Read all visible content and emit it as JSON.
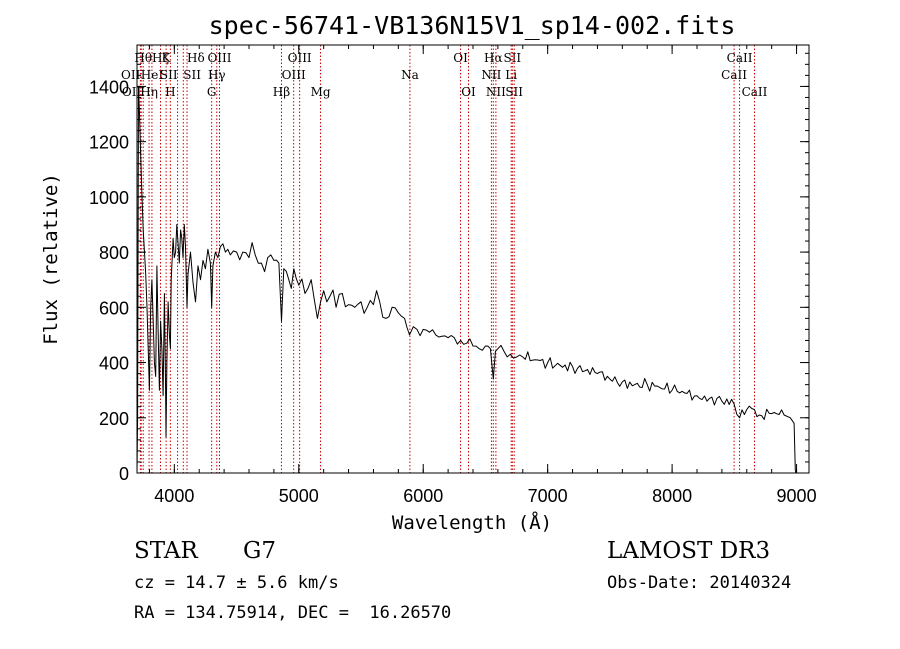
{
  "chart_data": {
    "type": "line",
    "title": "spec-56741-VB136N15V1_sp14-002.fits",
    "xlabel": "Wavelength (Å)",
    "ylabel": "Flux (relative)",
    "xlim": [
      3700,
      9100
    ],
    "ylim": [
      0,
      1550
    ],
    "xticks": [
      4000,
      5000,
      6000,
      7000,
      8000,
      9000
    ],
    "yticks": [
      0,
      200,
      400,
      600,
      800,
      1000,
      1200,
      1400
    ],
    "x_minor_step": 200,
    "y_minor_step": 40,
    "spectrum": {
      "x": [
        3700,
        3705,
        3712,
        3720,
        3730,
        3740,
        3750,
        3760,
        3770,
        3780,
        3790,
        3800,
        3810,
        3820,
        3830,
        3840,
        3850,
        3860,
        3870,
        3880,
        3890,
        3900,
        3910,
        3920,
        3930,
        3933,
        3940,
        3950,
        3960,
        3968,
        3975,
        3990,
        4000,
        4010,
        4020,
        4030,
        4040,
        4050,
        4060,
        4070,
        4080,
        4090,
        4102,
        4110,
        4130,
        4150,
        4170,
        4190,
        4210,
        4230,
        4250,
        4270,
        4290,
        4300,
        4310,
        4330,
        4350,
        4370,
        4390,
        4410,
        4430,
        4450,
        4500,
        4550,
        4600,
        4650,
        4700,
        4750,
        4800,
        4840,
        4861,
        4880,
        4920,
        4960,
        5000,
        5050,
        5100,
        5150,
        5175,
        5200,
        5250,
        5300,
        5350,
        5400,
        5450,
        5500,
        5550,
        5600,
        5650,
        5700,
        5750,
        5800,
        5850,
        5890,
        5920,
        5950,
        6000,
        6050,
        6100,
        6150,
        6200,
        6250,
        6300,
        6350,
        6400,
        6450,
        6500,
        6540,
        6563,
        6580,
        6600,
        6650,
        6700,
        6750,
        6800,
        6900,
        7000,
        7100,
        7200,
        7300,
        7400,
        7500,
        7600,
        7700,
        7800,
        7900,
        8000,
        8100,
        8200,
        8300,
        8400,
        8498,
        8542,
        8600,
        8662,
        8700,
        8800,
        8900,
        8950,
        8980,
        8990,
        8995
      ],
      "y": [
        0,
        200,
        1400,
        1300,
        1150,
        1000,
        880,
        800,
        720,
        600,
        450,
        300,
        600,
        700,
        550,
        400,
        350,
        750,
        500,
        300,
        550,
        450,
        280,
        650,
        300,
        130,
        400,
        620,
        500,
        450,
        700,
        850,
        780,
        800,
        900,
        830,
        760,
        880,
        850,
        780,
        900,
        820,
        600,
        720,
        800,
        690,
        620,
        750,
        700,
        770,
        740,
        810,
        760,
        600,
        750,
        800,
        780,
        820,
        830,
        800,
        810,
        790,
        800,
        800,
        780,
        790,
        760,
        780,
        770,
        760,
        550,
        740,
        700,
        740,
        680,
        650,
        700,
        560,
        620,
        660,
        640,
        600,
        650,
        610,
        600,
        620,
        600,
        610,
        620,
        560,
        600,
        580,
        560,
        500,
        530,
        520,
        520,
        510,
        500,
        495,
        490,
        490,
        480,
        470,
        460,
        450,
        460,
        450,
        340,
        440,
        450,
        440,
        430,
        420,
        420,
        410,
        400,
        390,
        385,
        370,
        360,
        340,
        330,
        320,
        320,
        310,
        300,
        290,
        280,
        270,
        260,
        250,
        200,
        230,
        230,
        210,
        215,
        210,
        200,
        180,
        10,
        0
      ]
    },
    "line_markers": [
      {
        "wavelength": 3727,
        "label": "OII",
        "row": 2,
        "align": "end"
      },
      {
        "wavelength": 3734,
        "label": "OII",
        "row": 3,
        "align": "end"
      },
      {
        "wavelength": 3750,
        "label": "Hθ",
        "row": 1,
        "align": "middle"
      },
      {
        "wavelength": 3797,
        "label": "Hη",
        "row": 3,
        "align": "middle"
      },
      {
        "wavelength": 3820,
        "label": "HeI",
        "row": 2,
        "align": "middle"
      },
      {
        "wavelength": 3889,
        "label": "Hζ",
        "row": 1,
        "align": "middle"
      },
      {
        "wavelength": 3934,
        "label": "K",
        "row": 1,
        "align": "middle"
      },
      {
        "wavelength": 3968,
        "label": "H",
        "row": 3,
        "align": "middle"
      },
      {
        "wavelength": 4026,
        "label": "SII",
        "row": 2,
        "align": "end"
      },
      {
        "wavelength": 4072,
        "label": "SII",
        "row": 2,
        "align": "start"
      },
      {
        "wavelength": 4102,
        "label": "Hδ",
        "row": 1,
        "align": "start"
      },
      {
        "wavelength": 4300,
        "label": "G",
        "row": 3,
        "align": "middle"
      },
      {
        "wavelength": 4341,
        "label": "Hγ",
        "row": 2,
        "align": "middle"
      },
      {
        "wavelength": 4363,
        "label": "OIII",
        "row": 1,
        "align": "middle"
      },
      {
        "wavelength": 4861,
        "label": "Hβ",
        "row": 3,
        "align": "middle"
      },
      {
        "wavelength": 4959,
        "label": "OIII",
        "row": 2,
        "align": "middle"
      },
      {
        "wavelength": 5007,
        "label": "OIII",
        "row": 1,
        "align": "middle"
      },
      {
        "wavelength": 5175,
        "label": "Mg",
        "row": 3,
        "align": "middle"
      },
      {
        "wavelength": 5893,
        "label": "Na",
        "row": 2,
        "align": "middle"
      },
      {
        "wavelength": 6300,
        "label": "OI",
        "row": 1,
        "align": "middle"
      },
      {
        "wavelength": 6364,
        "label": "OI",
        "row": 3,
        "align": "middle"
      },
      {
        "wavelength": 6548,
        "label": "NII",
        "row": 2,
        "align": "middle"
      },
      {
        "wavelength": 6563,
        "label": "Hα",
        "row": 1,
        "align": "middle"
      },
      {
        "wavelength": 6584,
        "label": "NII",
        "row": 3,
        "align": "middle"
      },
      {
        "wavelength": 6707,
        "label": "Li",
        "row": 2,
        "align": "middle"
      },
      {
        "wavelength": 6716,
        "label": "SII",
        "row": 1,
        "align": "middle"
      },
      {
        "wavelength": 6731,
        "label": "SII",
        "row": 3,
        "align": "middle"
      },
      {
        "wavelength": 8498,
        "label": "CaII",
        "row": 2,
        "align": "middle"
      },
      {
        "wavelength": 8542,
        "label": "CaII",
        "row": 1,
        "align": "middle"
      },
      {
        "wavelength": 8662,
        "label": "CaII",
        "row": 3,
        "align": "middle"
      }
    ]
  },
  "info": {
    "object_class": "STAR",
    "subclass": "G7",
    "survey": "LAMOST DR3",
    "redshift": "cz = 14.7 ± 5.6 km/s",
    "obs_date": "Obs-Date: 20140324",
    "coords": "RA = 134.75914, DEC =  16.26570"
  },
  "colors": {
    "spectrum": "#000000",
    "marker_line": "#cc0000",
    "background": "#ffffff"
  }
}
